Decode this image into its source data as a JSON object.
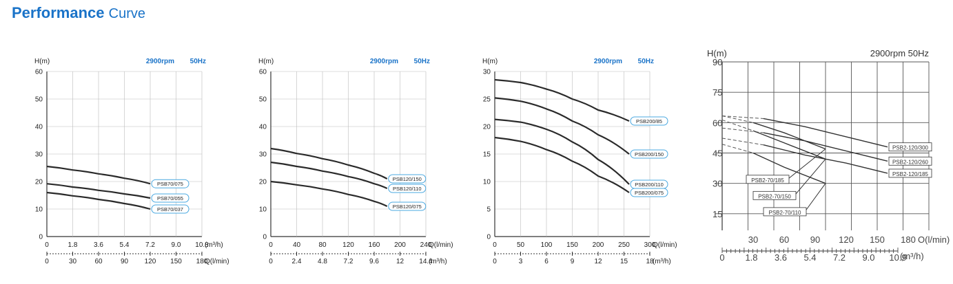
{
  "header": {
    "title_main": "Performance",
    "title_sub": "Curve"
  },
  "chart_data": [
    {
      "type": "line",
      "ylabel": "H(m)",
      "speed": "2900rpm",
      "freq": "50Hz",
      "ylim": [
        0,
        60
      ],
      "yticks": [
        "0",
        "10",
        "20",
        "30",
        "40",
        "50",
        "60"
      ],
      "x_primary": {
        "ticks": [
          "0",
          "1.8",
          "3.6",
          "5.4",
          "7.2",
          "9.0",
          "10.8"
        ],
        "unit": "(m³/h)",
        "range": [
          0,
          10.8
        ]
      },
      "x_secondary": {
        "ticks": [
          "0",
          "30",
          "60",
          "90",
          "120",
          "150",
          "180"
        ],
        "unit": "Q(l/min)"
      },
      "series": [
        {
          "name": "PSB70/075",
          "x": [
            0,
            1.8,
            3.6,
            5.4,
            7.2
          ],
          "y": [
            25.5,
            24.2,
            22.8,
            21.2,
            19.2
          ]
        },
        {
          "name": "PSB70/055",
          "x": [
            0,
            1.8,
            3.6,
            5.4,
            7.2
          ],
          "y": [
            19.2,
            18.0,
            16.8,
            15.5,
            14.0
          ]
        },
        {
          "name": "PSB70/037",
          "x": [
            0,
            1.8,
            3.6,
            5.4,
            7.2
          ],
          "y": [
            16.0,
            14.8,
            13.5,
            12.0,
            10.0
          ]
        }
      ]
    },
    {
      "type": "line",
      "ylabel": "H(m)",
      "speed": "2900rpm",
      "freq": "50Hz",
      "ylim": [
        0,
        60
      ],
      "yticks": [
        "0",
        "10",
        "20",
        "30",
        "40",
        "50",
        "60"
      ],
      "x_primary": {
        "ticks": [
          "0",
          "40",
          "80",
          "120",
          "160",
          "200",
          "240"
        ],
        "unit": "Q(l/min)",
        "range": [
          0,
          240
        ]
      },
      "x_secondary": {
        "ticks": [
          "0",
          "2.4",
          "4.8",
          "7.2",
          "9.6",
          "12",
          "14.4"
        ],
        "unit": "(m³/h)"
      },
      "series": [
        {
          "name": "PSB120/150",
          "x": [
            0,
            40,
            80,
            120,
            160,
            180
          ],
          "y": [
            32.0,
            30.2,
            28.3,
            26.0,
            23.0,
            21.0
          ]
        },
        {
          "name": "PSB120/110",
          "x": [
            0,
            40,
            80,
            120,
            160,
            180
          ],
          "y": [
            27.0,
            25.5,
            23.8,
            21.8,
            19.2,
            17.5
          ]
        },
        {
          "name": "PSB120/075",
          "x": [
            0,
            40,
            80,
            120,
            160,
            180
          ],
          "y": [
            20.0,
            18.8,
            17.3,
            15.3,
            12.8,
            11.0
          ]
        }
      ]
    },
    {
      "type": "line",
      "ylabel": "H(m)",
      "speed": "2900rpm",
      "freq": "50Hz",
      "ylim": [
        0,
        30
      ],
      "yticks": [
        "0",
        "5",
        "10",
        "15",
        "20",
        "25",
        "30"
      ],
      "x_primary": {
        "ticks": [
          "0",
          "50",
          "100",
          "150",
          "200",
          "250",
          "300"
        ],
        "unit": "Q(l/min)",
        "range": [
          0,
          300
        ]
      },
      "x_secondary": {
        "ticks": [
          "0",
          "3",
          "6",
          "9",
          "12",
          "15",
          "18"
        ],
        "unit": "(m³/h)"
      },
      "series": [
        {
          "name": "PSB200/85",
          "x": [
            0,
            50,
            100,
            150,
            200,
            260
          ],
          "y": [
            28.5,
            28.0,
            26.8,
            25.0,
            23.0,
            21.0
          ]
        },
        {
          "name": "PSB200/150",
          "x": [
            0,
            50,
            100,
            150,
            200,
            260
          ],
          "y": [
            25.2,
            24.6,
            23.2,
            21.0,
            18.5,
            15.0
          ]
        },
        {
          "name": "PSB200/110",
          "x": [
            0,
            50,
            100,
            150,
            200,
            260
          ],
          "y": [
            21.3,
            20.8,
            19.5,
            17.2,
            14.0,
            9.5
          ]
        },
        {
          "name": "PSB200/075",
          "x": [
            0,
            50,
            100,
            150,
            200,
            260
          ],
          "y": [
            18.0,
            17.3,
            15.8,
            13.7,
            11.0,
            8.0
          ]
        }
      ]
    },
    {
      "type": "line",
      "ylabel": "H(m)",
      "speed": "2900rpm 50Hz",
      "ylim": [
        0,
        90
      ],
      "yticks": [
        "15",
        "30",
        "45",
        "60",
        "75",
        "90"
      ],
      "x_primary": {
        "ticks": [
          "30",
          "60",
          "90",
          "120",
          "150",
          "180"
        ],
        "unit": "O(l/min)",
        "range": [
          0,
          180
        ]
      },
      "x_secondary": {
        "ticks": [
          "0",
          "1.8",
          "3.6",
          "5.4",
          "7.2",
          "9.0",
          "10.9"
        ],
        "unit": "(m³/h)"
      },
      "series": [
        {
          "name": "PSB2-120/300",
          "x": [
            10,
            40,
            80,
            120,
            160
          ],
          "y": [
            64,
            62,
            58,
            53,
            48
          ]
        },
        {
          "name": "PSB2-120/260",
          "x": [
            8,
            40,
            80,
            120,
            160
          ],
          "y": [
            58,
            55,
            51,
            46,
            41
          ]
        },
        {
          "name": "PSB2-120/185",
          "x": [
            8,
            40,
            80,
            120,
            160
          ],
          "y": [
            53,
            49,
            44,
            40,
            35
          ]
        },
        {
          "name": "PSB2-70/185",
          "x": [
            3,
            30,
            60,
            100
          ],
          "y": [
            64,
            60,
            55,
            47
          ]
        },
        {
          "name": "PSB2-70/150",
          "x": [
            3,
            30,
            60,
            100
          ],
          "y": [
            62,
            56,
            50,
            42
          ]
        },
        {
          "name": "PSB2-70/110",
          "x": [
            3,
            30,
            60,
            100
          ],
          "y": [
            50,
            45,
            38,
            30
          ]
        }
      ]
    }
  ]
}
